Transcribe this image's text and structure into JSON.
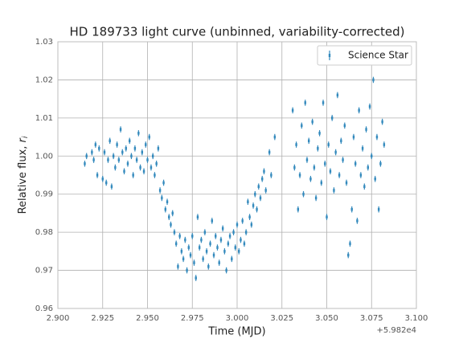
{
  "chart_data": {
    "type": "errorbar",
    "title": "HD 189733 light curve (unbinned, variability-corrected)",
    "xlabel": "Time (MJD)",
    "ylabel": [
      "Relative flux, ",
      "r",
      "i"
    ],
    "x_offset_label": "+5.982e4",
    "xlim": [
      2.9,
      3.1
    ],
    "xticks": [
      {
        "value": 2.9,
        "label": "2.900"
      },
      2.925,
      {
        "value": 2.95,
        "label": "2.950"
      },
      2.975,
      {
        "value": 3.0,
        "label": "3.000"
      },
      3.025,
      {
        "value": 3.05,
        "label": "3.050"
      },
      3.075,
      {
        "value": 3.1,
        "label": "3.100"
      }
    ],
    "ylim": [
      0.96,
      1.03
    ],
    "yticks": [
      0.96,
      0.97,
      0.98,
      0.99,
      {
        "value": 1.0,
        "label": "1.00"
      },
      1.01,
      1.02,
      1.03
    ],
    "grid": true,
    "legend": "upper right",
    "series": [
      {
        "name": "Science Star",
        "color": "#348ABD",
        "yerr": 0.0008,
        "x": [
          2.915,
          2.916,
          2.919,
          2.92,
          2.921,
          2.922,
          2.923,
          2.925,
          2.926,
          2.927,
          2.928,
          2.929,
          2.93,
          2.931,
          2.932,
          2.933,
          2.934,
          2.935,
          2.936,
          2.937,
          2.938,
          2.939,
          2.94,
          2.941,
          2.942,
          2.943,
          2.944,
          2.945,
          2.946,
          2.947,
          2.948,
          2.949,
          2.95,
          2.951,
          2.952,
          2.953,
          2.954,
          2.955,
          2.956,
          2.957,
          2.958,
          2.959,
          2.96,
          2.961,
          2.962,
          2.963,
          2.964,
          2.965,
          2.966,
          2.967,
          2.968,
          2.969,
          2.97,
          2.971,
          2.972,
          2.973,
          2.974,
          2.975,
          2.976,
          2.977,
          2.978,
          2.979,
          2.98,
          2.981,
          2.982,
          2.983,
          2.984,
          2.985,
          2.986,
          2.987,
          2.988,
          2.989,
          2.99,
          2.991,
          2.992,
          2.993,
          2.994,
          2.995,
          2.996,
          2.997,
          2.998,
          2.999,
          3.0,
          3.001,
          3.002,
          3.003,
          3.004,
          3.005,
          3.006,
          3.007,
          3.008,
          3.009,
          3.01,
          3.011,
          3.012,
          3.013,
          3.014,
          3.015,
          3.016,
          3.018,
          3.019,
          3.021,
          3.031,
          3.032,
          3.033,
          3.034,
          3.035,
          3.036,
          3.037,
          3.038,
          3.039,
          3.04,
          3.041,
          3.042,
          3.043,
          3.044,
          3.045,
          3.046,
          3.047,
          3.048,
          3.049,
          3.05,
          3.051,
          3.052,
          3.053,
          3.054,
          3.055,
          3.056,
          3.057,
          3.058,
          3.059,
          3.06,
          3.061,
          3.062,
          3.063,
          3.064,
          3.065,
          3.066,
          3.067,
          3.068,
          3.069,
          3.07,
          3.071,
          3.072,
          3.073,
          3.074,
          3.075,
          3.076,
          3.077,
          3.078,
          3.079,
          3.08,
          3.081,
          3.082
        ],
        "y": [
          0.998,
          1.0,
          1.001,
          0.999,
          1.003,
          0.995,
          1.002,
          0.994,
          1.001,
          0.993,
          0.999,
          1.004,
          0.992,
          1.0,
          0.997,
          1.003,
          0.999,
          1.007,
          1.001,
          0.996,
          1.002,
          0.998,
          1.004,
          1.0,
          0.995,
          1.002,
          0.999,
          1.006,
          0.997,
          1.001,
          0.996,
          1.003,
          0.999,
          1.005,
          0.997,
          1.0,
          0.995,
          0.998,
          1.002,
          0.991,
          0.989,
          0.993,
          0.986,
          0.988,
          0.984,
          0.982,
          0.985,
          0.98,
          0.977,
          0.971,
          0.979,
          0.975,
          0.973,
          0.978,
          0.97,
          0.976,
          0.974,
          0.979,
          0.972,
          0.968,
          0.984,
          0.976,
          0.978,
          0.973,
          0.98,
          0.975,
          0.971,
          0.977,
          0.983,
          0.974,
          0.979,
          0.976,
          0.972,
          0.978,
          0.981,
          0.975,
          0.97,
          0.977,
          0.979,
          0.973,
          0.98,
          0.976,
          0.982,
          0.975,
          0.978,
          0.983,
          0.977,
          0.98,
          0.988,
          0.984,
          0.982,
          0.987,
          0.99,
          0.986,
          0.992,
          0.989,
          0.994,
          0.996,
          0.991,
          1.001,
          0.995,
          1.005,
          1.012,
          0.997,
          1.003,
          0.986,
          0.995,
          1.008,
          0.99,
          1.014,
          0.999,
          1.004,
          0.994,
          1.009,
          0.997,
          0.989,
          1.002,
          1.006,
          0.993,
          1.014,
          0.998,
          0.984,
          1.003,
          0.996,
          1.01,
          0.991,
          1.001,
          1.016,
          0.995,
          1.004,
          0.999,
          1.008,
          0.993,
          0.974,
          0.977,
          0.986,
          1.005,
          0.998,
          0.983,
          1.012,
          0.995,
          1.002,
          0.992,
          1.007,
          0.997,
          1.013,
          1.0,
          1.02,
          0.994,
          1.005,
          0.986,
          0.998,
          1.009,
          1.003
        ]
      }
    ]
  }
}
